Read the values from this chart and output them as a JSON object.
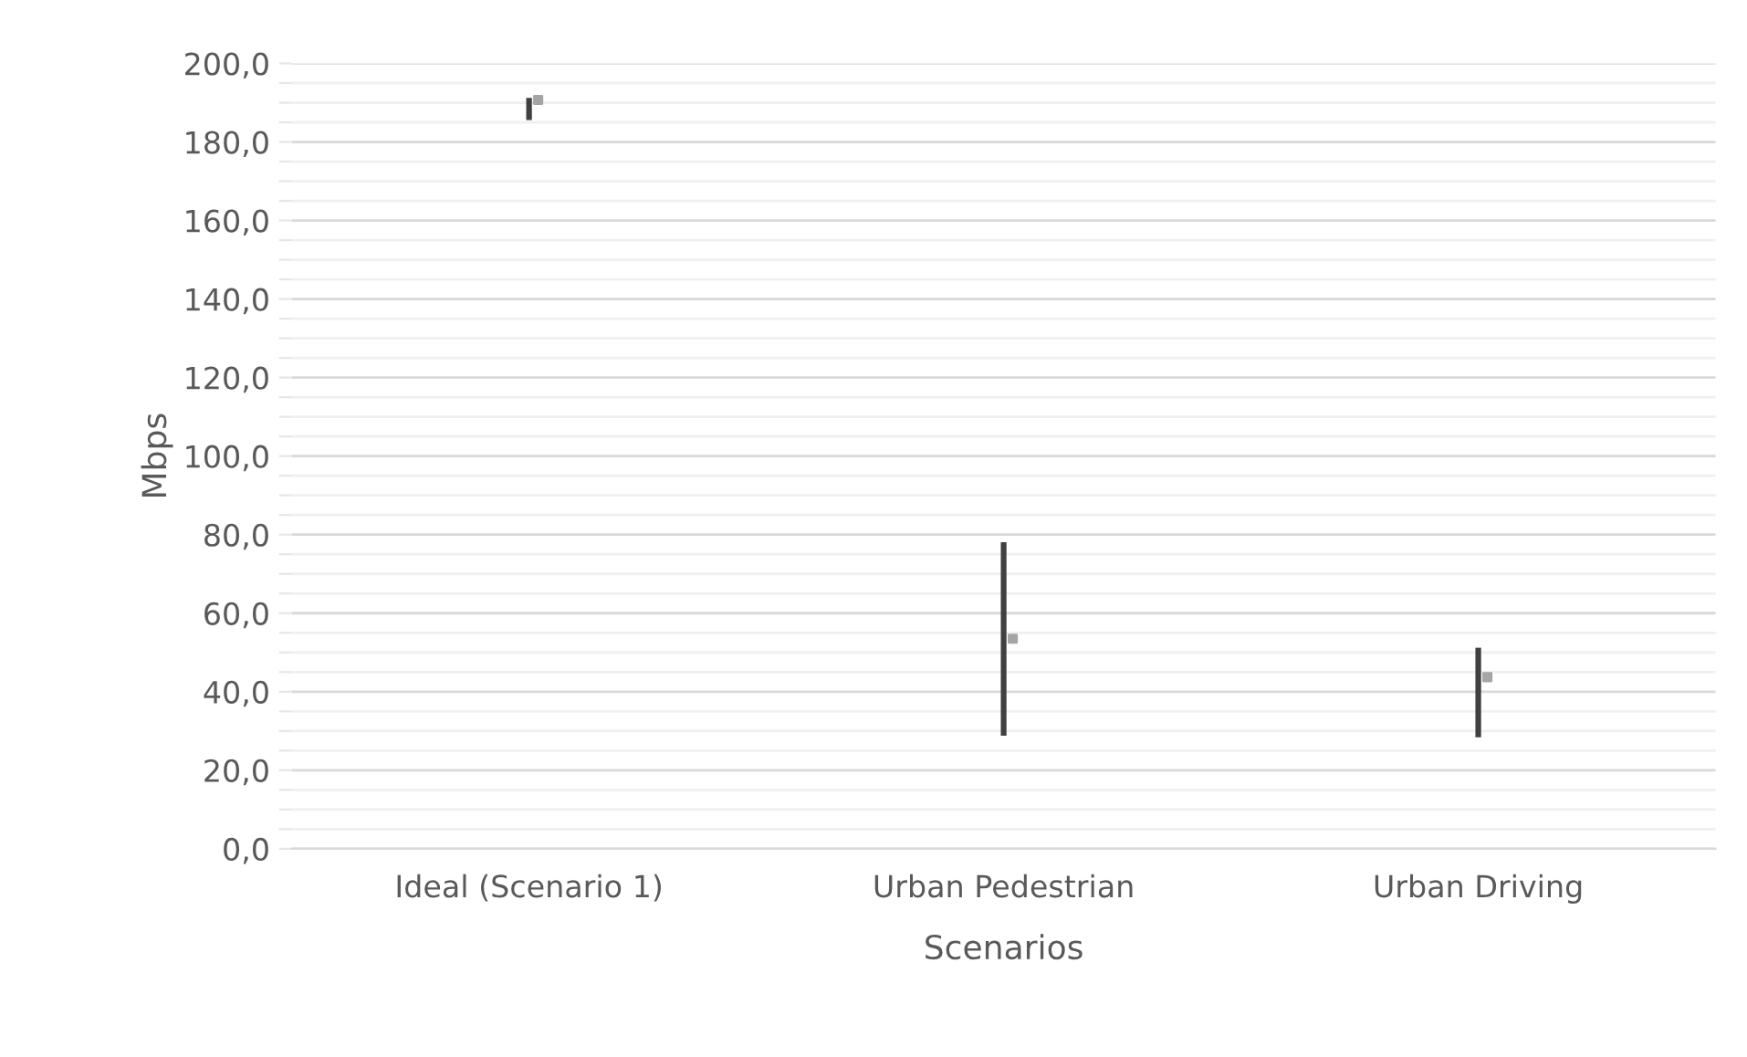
{
  "chart_data": {
    "type": "bar",
    "xlabel": "Scenarios",
    "ylabel": "Mbps",
    "categories": [
      "Ideal (Scenario 1)",
      "Urban Pedestrian",
      "Urban Driving"
    ],
    "series": [
      {
        "color": "#404040",
        "base": [
          185.6,
          28.8,
          28.4
        ],
        "values": [
          5.6,
          49.3,
          22.8
        ]
      },
      {
        "type": "scatter",
        "color": "#a5a5a5",
        "marker": "square",
        "values": [
          190.7,
          53.5,
          43.7
        ]
      }
    ],
    "ylim": [
      0,
      200
    ],
    "yticks": [
      {
        "value": 0,
        "label": "0,0"
      },
      {
        "value": 5,
        "label": null
      },
      {
        "value": 10,
        "label": null
      },
      {
        "value": 15,
        "label": null
      },
      {
        "value": 20,
        "label": "20,0"
      },
      {
        "value": 25,
        "label": null
      },
      {
        "value": 30,
        "label": null
      },
      {
        "value": 35,
        "label": null
      },
      {
        "value": 40,
        "label": "40,0"
      },
      {
        "value": 45,
        "label": null
      },
      {
        "value": 50,
        "label": null
      },
      {
        "value": 55,
        "label": null
      },
      {
        "value": 60,
        "label": "60,0"
      },
      {
        "value": 65,
        "label": null
      },
      {
        "value": 70,
        "label": null
      },
      {
        "value": 75,
        "label": null
      },
      {
        "value": 80,
        "label": "80,0"
      },
      {
        "value": 85,
        "label": null
      },
      {
        "value": 90,
        "label": null
      },
      {
        "value": 95,
        "label": null
      },
      {
        "value": 100,
        "label": "100,0"
      },
      {
        "value": 105,
        "label": null
      },
      {
        "value": 110,
        "label": null
      },
      {
        "value": 115,
        "label": null
      },
      {
        "value": 120,
        "label": "120,0"
      },
      {
        "value": 125,
        "label": null
      },
      {
        "value": 130,
        "label": null
      },
      {
        "value": 135,
        "label": null
      },
      {
        "value": 140,
        "label": "140,0"
      },
      {
        "value": 145,
        "label": null
      },
      {
        "value": 150,
        "label": null
      },
      {
        "value": 155,
        "label": null
      },
      {
        "value": 160,
        "label": "160,0"
      },
      {
        "value": 165,
        "label": null
      },
      {
        "value": 170,
        "label": null
      },
      {
        "value": 175,
        "label": null
      },
      {
        "value": 180,
        "label": "180,0"
      },
      {
        "value": 185,
        "label": null
      },
      {
        "value": 190,
        "label": null
      },
      {
        "value": 195,
        "label": null
      },
      {
        "value": 200,
        "label": "200,0"
      }
    ],
    "grid": "y"
  }
}
